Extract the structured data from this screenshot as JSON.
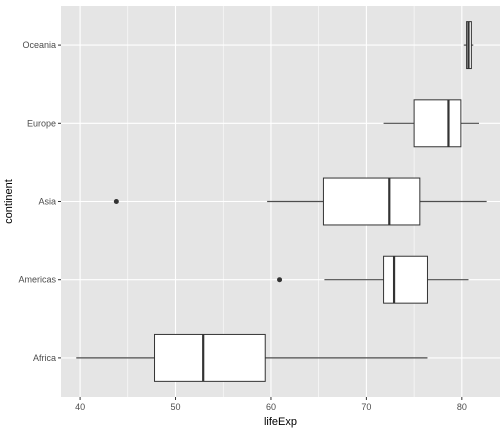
{
  "chart_data": {
    "type": "boxplot",
    "orientation": "horizontal",
    "xlabel": "lifeExp",
    "ylabel": "continent",
    "xlim": [
      38,
      84
    ],
    "x_ticks": [
      40,
      50,
      60,
      70,
      80
    ],
    "grid": true,
    "legend": "none",
    "colors": {
      "panel": "#e5e5e5",
      "grid": "#ffffff",
      "box_fill": "#ffffff",
      "box_stroke": "#333333",
      "whisker": "#4d4d4d",
      "outlier": "#333333"
    },
    "categories": [
      "Africa",
      "Americas",
      "Asia",
      "Europe",
      "Oceania"
    ],
    "boxes": [
      {
        "category": "Africa",
        "min": 39.6,
        "q1": 47.8,
        "median": 52.9,
        "q3": 59.4,
        "max": 76.4,
        "outliers": []
      },
      {
        "category": "Americas",
        "min": 65.6,
        "q1": 71.8,
        "median": 72.9,
        "q3": 76.4,
        "max": 80.7,
        "outliers": [
          60.9
        ]
      },
      {
        "category": "Asia",
        "min": 59.6,
        "q1": 65.5,
        "median": 72.4,
        "q3": 75.6,
        "max": 82.6,
        "outliers": [
          43.8
        ]
      },
      {
        "category": "Europe",
        "min": 71.8,
        "q1": 75.0,
        "median": 78.6,
        "q3": 79.9,
        "max": 81.8,
        "outliers": []
      },
      {
        "category": "Oceania",
        "min": 80.2,
        "q1": 80.5,
        "median": 80.7,
        "q3": 81.0,
        "max": 81.2,
        "outliers": []
      }
    ]
  }
}
